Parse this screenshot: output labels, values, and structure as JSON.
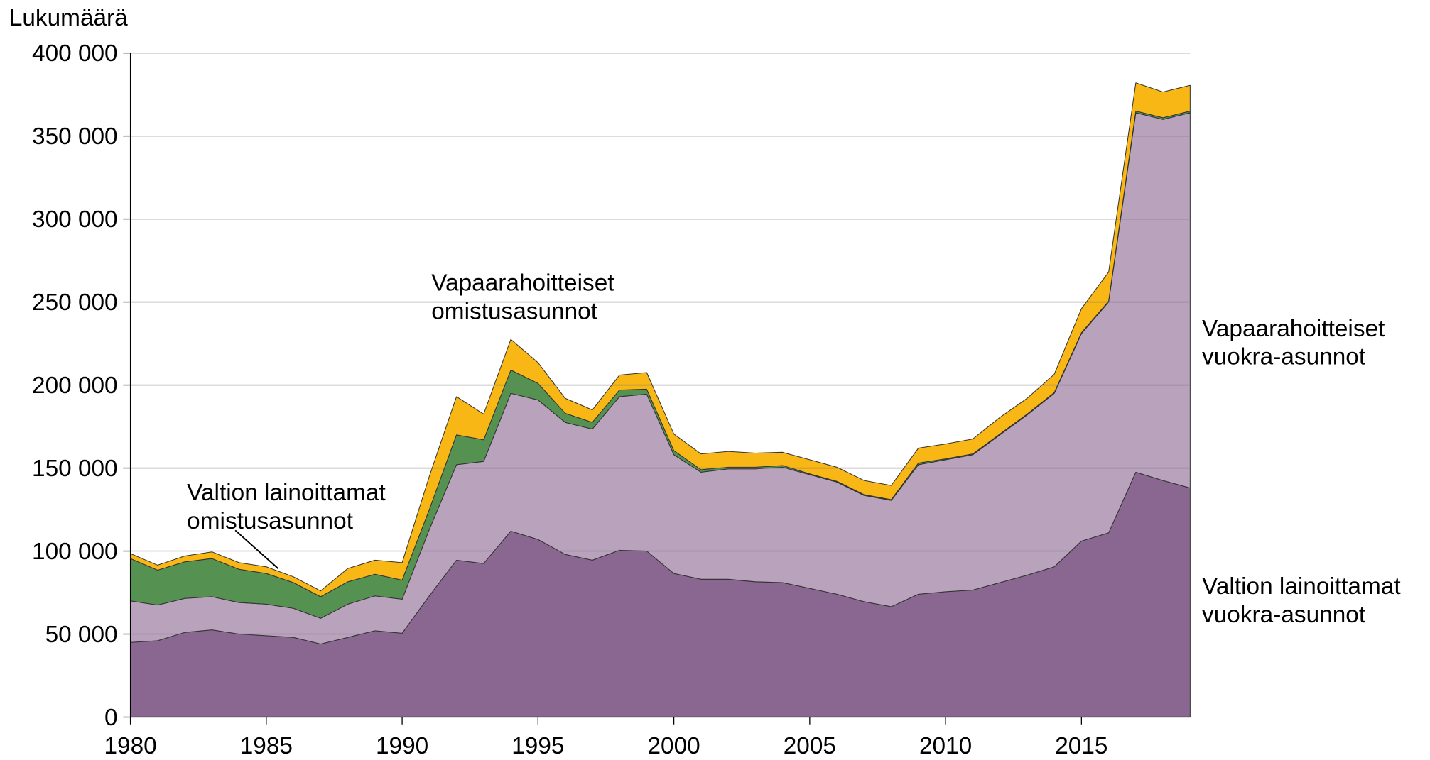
{
  "chart_data": {
    "type": "stacked_area",
    "ylabel": "Lukumäärä",
    "x": [
      1980,
      1981,
      1982,
      1983,
      1984,
      1985,
      1986,
      1987,
      1988,
      1989,
      1990,
      1991,
      1992,
      1993,
      1994,
      1995,
      1996,
      1997,
      1998,
      1999,
      2000,
      2001,
      2002,
      2003,
      2004,
      2005,
      2006,
      2007,
      2008,
      2009,
      2010,
      2011,
      2012,
      2013,
      2014,
      2015,
      2016,
      2017,
      2018,
      2019
    ],
    "xlim": [
      1980,
      2019
    ],
    "xticks": [
      1980,
      1985,
      1990,
      1995,
      2000,
      2005,
      2010,
      2015
    ],
    "ylim": [
      0,
      400000
    ],
    "yticks": [
      0,
      {
        "value": 50000,
        "label": "50 000"
      },
      {
        "value": 100000,
        "label": "100 000"
      },
      {
        "value": 150000,
        "label": "150 000"
      },
      {
        "value": 200000,
        "label": "200 000"
      },
      {
        "value": 250000,
        "label": "250 000"
      },
      {
        "value": 300000,
        "label": "300 000"
      },
      {
        "value": 350000,
        "label": "350 000"
      },
      {
        "value": 400000,
        "label": "400 000"
      }
    ],
    "grid": true,
    "series": [
      {
        "name": "Valtion lainoittamat vuokra-asunnot",
        "color": "#8a6790",
        "values": [
          45000,
          46000,
          51000,
          52500,
          50000,
          49000,
          48000,
          44000,
          48000,
          52000,
          50500,
          73000,
          94500,
          92500,
          112000,
          107000,
          98000,
          94500,
          100500,
          100000,
          86500,
          83000,
          83000,
          81500,
          81000,
          77500,
          74000,
          69500,
          66500,
          74000,
          75500,
          76500,
          81000,
          85500,
          90500,
          106000,
          111000,
          147500,
          142500,
          138000
        ]
      },
      {
        "name": "Vapaarahoitteiset vuokra-asunnot",
        "color": "#b8a2bc",
        "values": [
          25000,
          21500,
          20500,
          20000,
          19000,
          19000,
          17500,
          15500,
          20000,
          21000,
          20500,
          40000,
          57500,
          61500,
          83000,
          84000,
          79500,
          79000,
          92500,
          94500,
          71500,
          64500,
          66500,
          68000,
          69500,
          68500,
          67500,
          64000,
          64000,
          78000,
          79500,
          81500,
          89000,
          96500,
          104500,
          125000,
          139000,
          216500,
          217500,
          226000
        ]
      },
      {
        "name": "Valtion lainoittamat omistusasunnot",
        "color": "#559150",
        "values": [
          25500,
          21000,
          22000,
          23000,
          20000,
          18500,
          15500,
          13000,
          13500,
          13000,
          11500,
          12000,
          18000,
          13000,
          14000,
          10000,
          5500,
          4000,
          4000,
          3000,
          2500,
          1500,
          1000,
          1000,
          1000,
          500,
          500,
          500,
          500,
          1000,
          500,
          500,
          500,
          500,
          500,
          500,
          500,
          1000,
          1000,
          1000
        ]
      },
      {
        "name": "Vapaarahoitteiset omistusasunnot",
        "color": "#f9b715",
        "values": [
          3000,
          3000,
          3500,
          4000,
          4000,
          4000,
          3500,
          3500,
          8000,
          8500,
          10500,
          20000,
          23000,
          15500,
          18500,
          12500,
          9000,
          7500,
          9000,
          10000,
          10000,
          9500,
          9500,
          8500,
          8000,
          8500,
          8500,
          8500,
          8500,
          9000,
          9000,
          9000,
          10000,
          9500,
          11000,
          14500,
          17500,
          17000,
          15500,
          15500
        ]
      }
    ]
  }
}
